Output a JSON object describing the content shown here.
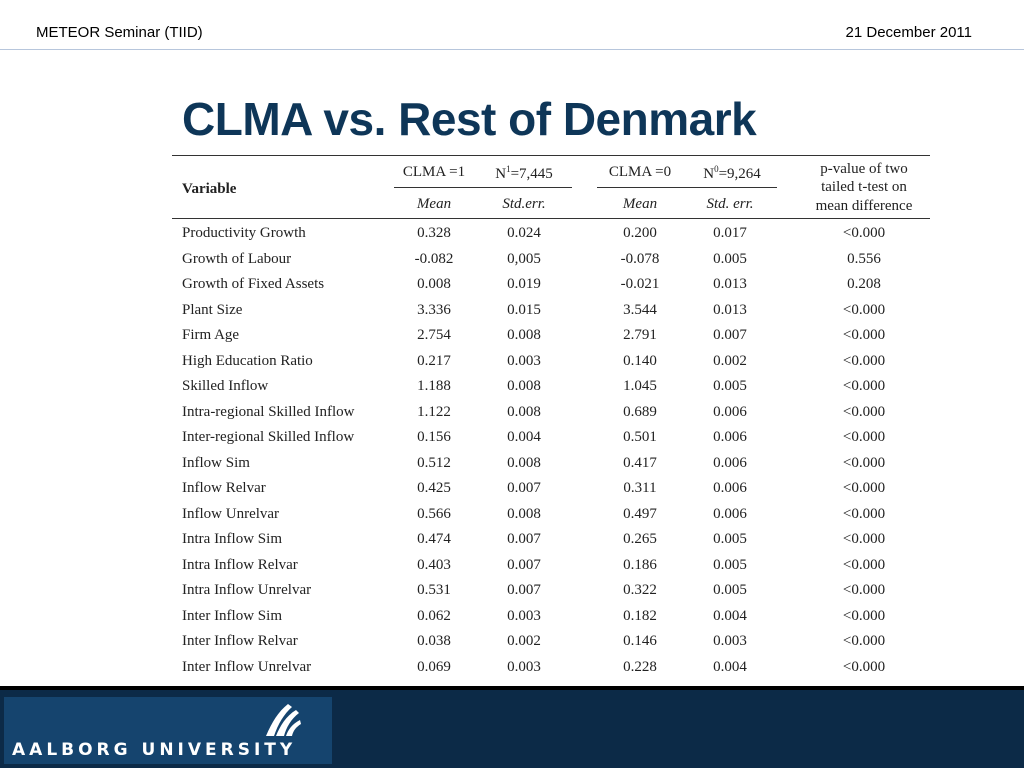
{
  "header": {
    "left": "METEOR Seminar (TIID)",
    "right": "21 December 2011"
  },
  "title": "CLMA vs. Rest of Denmark",
  "table": {
    "variable_header": "Variable",
    "group1_label": "CLMA =1",
    "group1_n_prefix": "N",
    "group1_n_sup": "1",
    "group1_n_value": "=7,445",
    "group0_label": "CLMA =0",
    "group0_n_prefix": "N",
    "group0_n_sup": "0",
    "group0_n_value": "=9,264",
    "pvalue_line1": "p-value of two",
    "pvalue_line2": "tailed t-test on",
    "pvalue_line3": "mean difference",
    "mean_label": "Mean",
    "stderr1_label": "Std.err.",
    "mean0_label": "Mean",
    "stderr0_label": "Std. err.",
    "rows": [
      {
        "variable": "Productivity Growth",
        "mean1": "0.328",
        "se1": "0.024",
        "mean0": "0.200",
        "se0": "0.017",
        "p": "<0.000"
      },
      {
        "variable": "Growth of Labour",
        "mean1": "-0.082",
        "se1": "0,005",
        "mean0": "-0.078",
        "se0": "0.005",
        "p": "0.556"
      },
      {
        "variable": "Growth of Fixed Assets",
        "mean1": "0.008",
        "se1": "0.019",
        "mean0": "-0.021",
        "se0": "0.013",
        "p": "0.208"
      },
      {
        "variable": "Plant Size",
        "mean1": "3.336",
        "se1": "0.015",
        "mean0": "3.544",
        "se0": "0.013",
        "p": "<0.000"
      },
      {
        "variable": "Firm Age",
        "mean1": "2.754",
        "se1": "0.008",
        "mean0": "2.791",
        "se0": "0.007",
        "p": "<0.000"
      },
      {
        "variable": "High Education Ratio",
        "mean1": "0.217",
        "se1": "0.003",
        "mean0": "0.140",
        "se0": "0.002",
        "p": "<0.000"
      },
      {
        "variable": "Skilled Inflow",
        "mean1": "1.188",
        "se1": "0.008",
        "mean0": "1.045",
        "se0": "0.005",
        "p": "<0.000"
      },
      {
        "variable": "Intra-regional Skilled Inflow",
        "mean1": "1.122",
        "se1": "0.008",
        "mean0": "0.689",
        "se0": "0.006",
        "p": "<0.000"
      },
      {
        "variable": "Inter-regional Skilled Inflow",
        "mean1": "0.156",
        "se1": "0.004",
        "mean0": "0.501",
        "se0": "0.006",
        "p": "<0.000"
      },
      {
        "variable": "Inflow Sim",
        "mean1": "0.512",
        "se1": "0.008",
        "mean0": "0.417",
        "se0": "0.006",
        "p": "<0.000"
      },
      {
        "variable": "Inflow Relvar",
        "mean1": "0.425",
        "se1": "0.007",
        "mean0": "0.311",
        "se0": "0.006",
        "p": "<0.000"
      },
      {
        "variable": "Inflow Unrelvar",
        "mean1": "0.566",
        "se1": "0.008",
        "mean0": "0.497",
        "se0": "0.006",
        "p": "<0.000"
      },
      {
        "variable": "Intra Inflow Sim",
        "mean1": "0.474",
        "se1": "0.007",
        "mean0": "0.265",
        "se0": "0.005",
        "p": "<0.000"
      },
      {
        "variable": "Intra Inflow Relvar",
        "mean1": "0.403",
        "se1": "0.007",
        "mean0": "0.186",
        "se0": "0.005",
        "p": "<0.000"
      },
      {
        "variable": "Intra Inflow Unrelvar",
        "mean1": "0.531",
        "se1": "0.007",
        "mean0": "0.322",
        "se0": "0.005",
        "p": "<0.000"
      },
      {
        "variable": "Inter Inflow Sim",
        "mean1": "0.062",
        "se1": "0.003",
        "mean0": "0.182",
        "se0": "0.004",
        "p": "<0.000"
      },
      {
        "variable": "Inter Inflow Relvar",
        "mean1": "0.038",
        "se1": "0.002",
        "mean0": "0.146",
        "se0": "0.003",
        "p": "<0.000"
      },
      {
        "variable": "Inter Inflow Unrelvar",
        "mean1": "0.069",
        "se1": "0.003",
        "mean0": "0.228",
        "se0": "0.004",
        "p": "<0.000"
      }
    ]
  },
  "footer": {
    "university": "AALBORG UNIVERSITY",
    "logo_icon": "aau-wave-logo-icon",
    "background_color": "#0c2a47",
    "title_color": "#0e3658"
  }
}
